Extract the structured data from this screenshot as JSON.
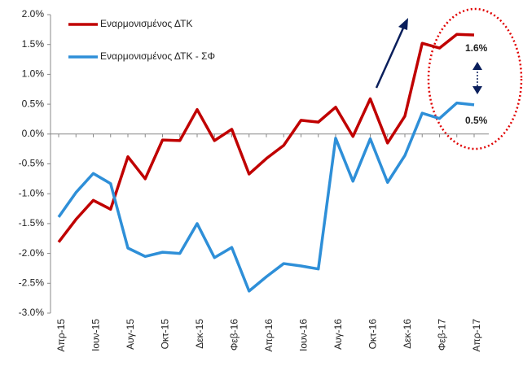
{
  "chart_data": {
    "type": "line",
    "categories": [
      "Απρ-15",
      null,
      "Ιουν-15",
      null,
      "Αυγ-15",
      null,
      "Οκτ-15",
      null,
      "Δεκ-15",
      null,
      "Φεβ-16",
      null,
      "Απρ-16",
      null,
      "Ιουν-16",
      null,
      "Αυγ-16",
      null,
      "Οκτ-16",
      null,
      "Δεκ-16",
      null,
      "Φεβ-17",
      null,
      "Απρ-17"
    ],
    "series": [
      {
        "name": "Εναρμονισμένος ΔΤΚ",
        "color": "#c00000",
        "values": [
          -1.81,
          -1.43,
          -1.11,
          -1.26,
          -0.38,
          -0.75,
          -0.1,
          -0.11,
          0.41,
          -0.11,
          0.08,
          -0.67,
          -0.41,
          -0.19,
          0.23,
          0.2,
          0.45,
          -0.04,
          0.59,
          -0.15,
          0.3,
          1.52,
          1.44,
          1.67,
          1.66
        ]
      },
      {
        "name": "Εναρμονισμένος ΔΤΚ - ΣΦ",
        "color": "#2e8fd8",
        "values": [
          -1.39,
          -0.98,
          -0.66,
          -0.83,
          -1.91,
          -2.05,
          -1.98,
          -2.0,
          -1.5,
          -2.07,
          -1.9,
          -2.63,
          -2.39,
          -2.17,
          -2.21,
          -2.26,
          -0.07,
          -0.79,
          -0.08,
          -0.81,
          -0.36,
          0.35,
          0.26,
          0.52,
          0.49
        ]
      }
    ],
    "ylim": [
      -3.0,
      2.0
    ],
    "yticks": [
      {
        "value": -3.0,
        "label": "-3.0%"
      },
      {
        "value": -2.5,
        "label": "-2.5%"
      },
      {
        "value": -2.0,
        "label": "-2.0%"
      },
      {
        "value": -1.5,
        "label": "-1.5%"
      },
      {
        "value": -1.0,
        "label": "-1.0%"
      },
      {
        "value": -0.5,
        "label": "-0.5%"
      },
      {
        "value": 0.0,
        "label": "0.0%"
      },
      {
        "value": 0.5,
        "label": "0.5%"
      },
      {
        "value": 1.0,
        "label": "1.0%"
      },
      {
        "value": 1.5,
        "label": "1.5%"
      },
      {
        "value": 2.0,
        "label": "2.0%"
      }
    ],
    "annotations": [
      "1.6%",
      "0.5%"
    ],
    "legend": "top-left"
  }
}
